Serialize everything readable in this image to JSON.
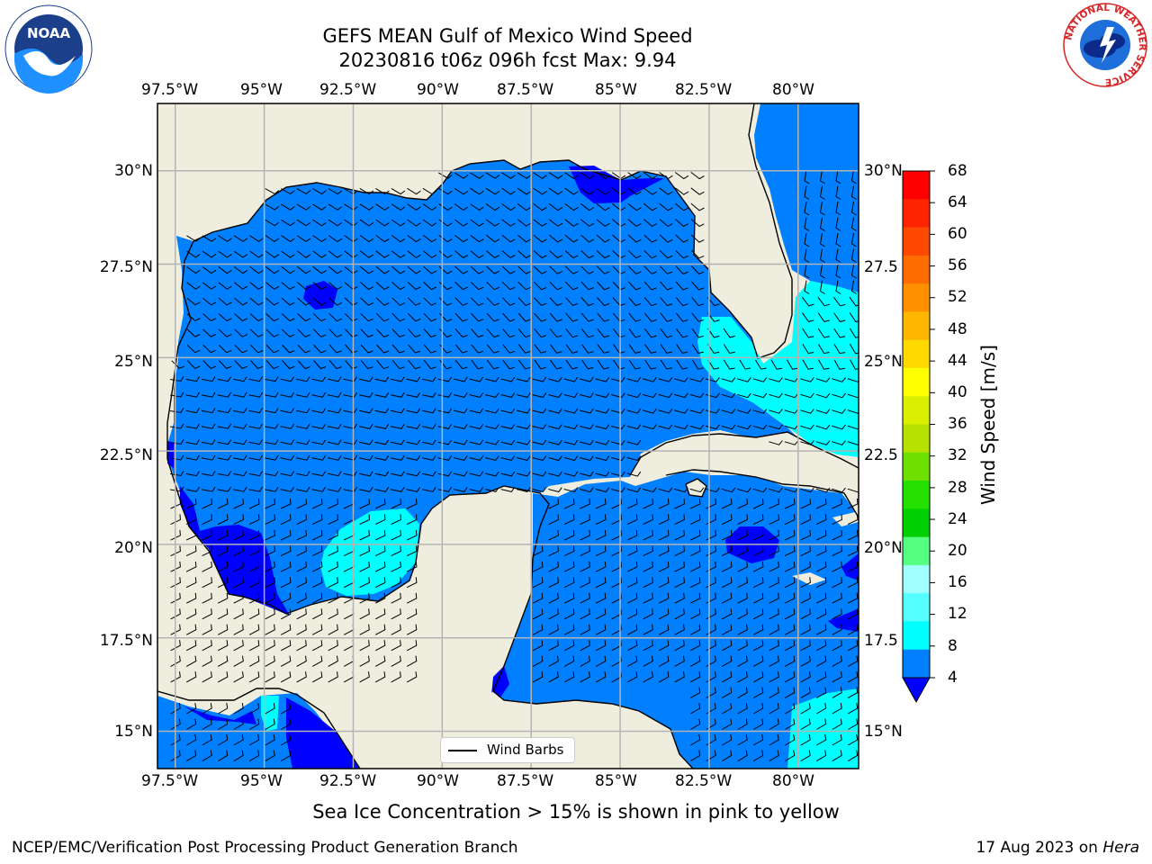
{
  "title": {
    "line1": "GEFS MEAN Gulf of Mexico Wind Speed",
    "line2": "20230816 t06z 096h fcst   Max: 9.94"
  },
  "map": {
    "lon_labels": [
      "97.5°W",
      "95°W",
      "92.5°W",
      "90°W",
      "87.5°W",
      "85°W",
      "82.5°W",
      "80°W"
    ],
    "lat_labels_left": [
      "30°N",
      "27.5°N",
      "25°N",
      "22.5°N",
      "20°N",
      "17.5°N",
      "15°N"
    ],
    "lat_labels_right": [
      "30°N",
      "27.5",
      "25°N",
      "22.5",
      "20°N",
      "17.5",
      "15°N"
    ],
    "lon_range": [
      -98,
      -78.3
    ],
    "lat_range": [
      14,
      31.8
    ],
    "colors": {
      "land": "#efedde",
      "wind_4_8": "#0080ff",
      "wind_below_4": "#0000ff",
      "wind_8_12": "#00ffff",
      "grid": "#b4b4b4"
    }
  },
  "legend": {
    "label": "Wind Barbs"
  },
  "colorbar": {
    "label": "Wind Speed [m/s]",
    "ticks": [
      "68",
      "64",
      "60",
      "56",
      "52",
      "48",
      "44",
      "40",
      "36",
      "32",
      "28",
      "24",
      "20",
      "16",
      "12",
      "8",
      "4"
    ],
    "colors": [
      "#ff0000",
      "#ff2400",
      "#ff4800",
      "#ff6d00",
      "#ff9100",
      "#ffb600",
      "#ffda00",
      "#ffff00",
      "#daf000",
      "#b6e000",
      "#6de000",
      "#24e000",
      "#00d000",
      "#55ff80",
      "#a0ffff",
      "#55ffff",
      "#00ffff",
      "#0080ff"
    ],
    "extend_color": "#0000ff"
  },
  "caption": "Sea Ice Concentration > 15% is shown in pink to yellow",
  "footer": {
    "credit": "NCEP/EMC/Verification Post Processing Product Generation Branch",
    "date_prefix": "17 Aug 2023 on ",
    "machine": "Hera"
  },
  "logos": {
    "noaa_text": "NOAA",
    "nws_text": "NATIONAL WEATHER SERVICE"
  }
}
